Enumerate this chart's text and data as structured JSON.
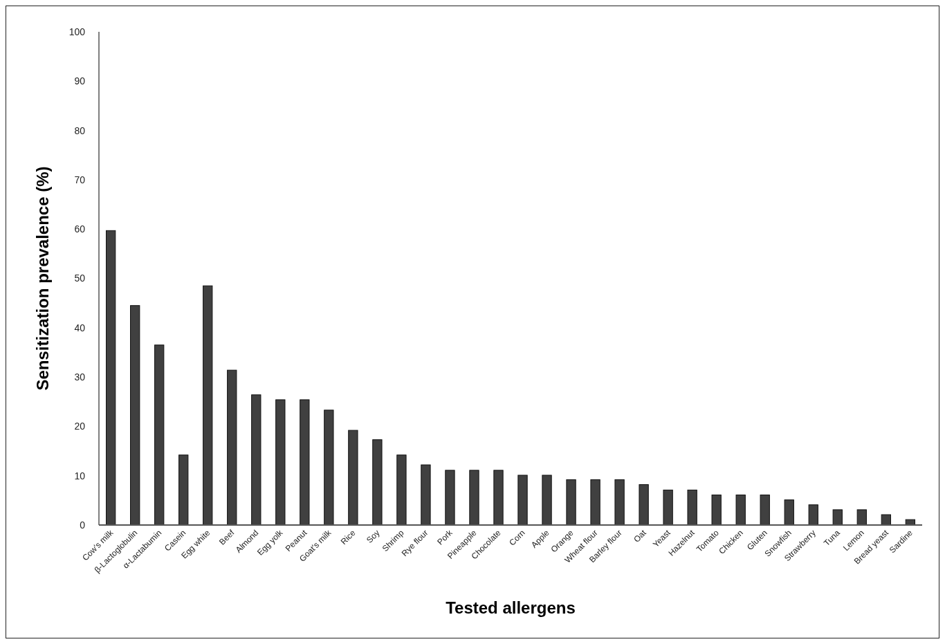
{
  "chart_data": {
    "type": "bar",
    "xlabel": "Tested allergens",
    "ylabel": "Sensitization prevalence (%)",
    "categories": [
      "Cow's milk",
      "β-Lactoglobulin",
      "α-Lactabumin",
      "Casein",
      "Egg white",
      "Beef",
      "Almond",
      "Egg yolk",
      "Peanut",
      "Goat's milk",
      "Rice",
      "Soy",
      "Shrimp",
      "Rye flour",
      "Pork",
      "Pineapple",
      "Chocolate",
      "Corn",
      "Apple",
      "Orange",
      "Wheat flour",
      "Barley flour",
      "Oat",
      "Yeast",
      "Hazelnut",
      "Tomato",
      "Chicken",
      "Gluten",
      "Snowfish",
      "Strawberry",
      "Tuna",
      "Lemon",
      "Bread yeast",
      "Sardine"
    ],
    "values": [
      59.7,
      44.5,
      36.5,
      14.2,
      48.5,
      31.4,
      26.4,
      25.4,
      25.4,
      23.3,
      19.2,
      17.3,
      14.2,
      12.2,
      11.1,
      11.1,
      11.1,
      10.1,
      10.1,
      9.2,
      9.2,
      9.2,
      8.2,
      7.1,
      7.1,
      6.1,
      6.1,
      6.1,
      5.1,
      4.1,
      3.1,
      3.1,
      2.1,
      1.1
    ],
    "color": "#404040",
    "ylim": [
      0,
      100
    ],
    "yticks": [
      0,
      10,
      20,
      30,
      40,
      50,
      60,
      70,
      80,
      90,
      100
    ]
  }
}
